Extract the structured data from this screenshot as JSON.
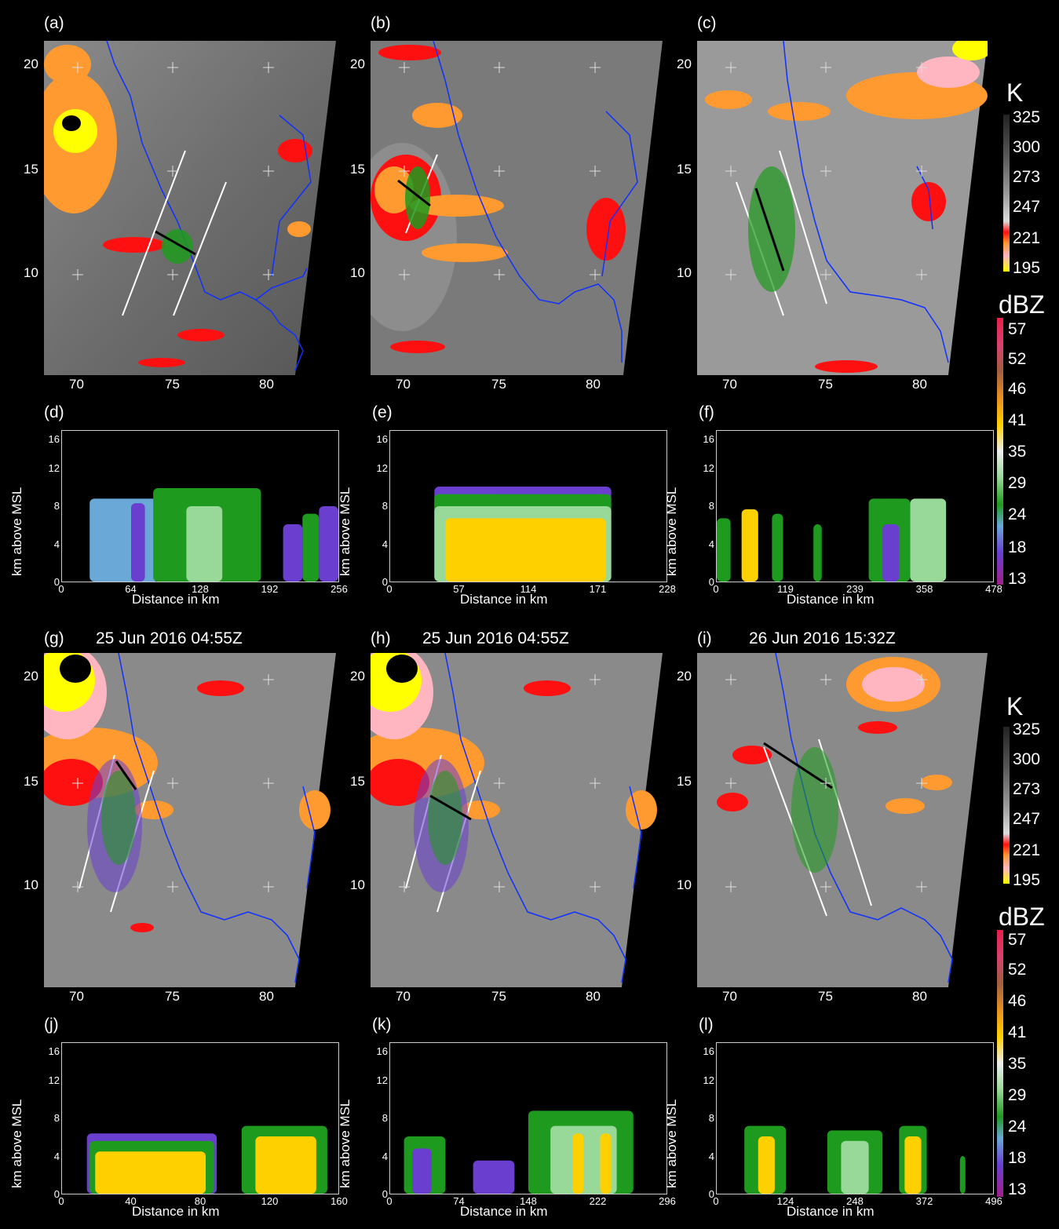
{
  "panels": {
    "a": {
      "label": "(a)",
      "title": "",
      "yticks": [
        "20",
        "15",
        "10"
      ],
      "xticks": [
        "70",
        "75",
        "80"
      ]
    },
    "b": {
      "label": "(b)",
      "title": "",
      "yticks": [
        "20",
        "15",
        "10"
      ],
      "xticks": [
        "70",
        "75",
        "80"
      ]
    },
    "c": {
      "label": "(c)",
      "title": "",
      "yticks": [
        "20",
        "15",
        "10"
      ],
      "xticks": [
        "70",
        "75",
        "80"
      ]
    },
    "g": {
      "label": "(g)",
      "title": "25 Jun 2016 04:55Z",
      "yticks": [
        "20",
        "15",
        "10"
      ],
      "xticks": [
        "70",
        "75",
        "80"
      ]
    },
    "h": {
      "label": "(h)",
      "title": "25 Jun 2016 04:55Z",
      "yticks": [
        "20",
        "15",
        "10"
      ],
      "xticks": [
        "70",
        "75",
        "80"
      ]
    },
    "i": {
      "label": "(i)",
      "title": "26 Jun 2016 15:32Z",
      "yticks": [
        "20",
        "15",
        "10"
      ],
      "xticks": [
        "70",
        "75",
        "80"
      ]
    }
  },
  "cross_sections": {
    "d": {
      "label": "(d)",
      "xticks": [
        "0",
        "64",
        "128",
        "192",
        "256"
      ],
      "yticks": [
        "16",
        "12",
        "8",
        "4",
        "0"
      ],
      "xlabel": "Distance in km",
      "ylabel": "km above MSL"
    },
    "e": {
      "label": "(e)",
      "xticks": [
        "0",
        "57",
        "114",
        "171",
        "228"
      ],
      "yticks": [
        "16",
        "12",
        "8",
        "4",
        "0"
      ],
      "xlabel": "Distance in km",
      "ylabel": "km above MSL"
    },
    "f": {
      "label": "(f)",
      "xticks": [
        "0",
        "119",
        "239",
        "358",
        "478"
      ],
      "yticks": [
        "16",
        "12",
        "8",
        "4",
        "0"
      ],
      "xlabel": "Distance in km",
      "ylabel": "km above MSL"
    },
    "j": {
      "label": "(j)",
      "xticks": [
        "0",
        "40",
        "80",
        "120",
        "160"
      ],
      "yticks": [
        "16",
        "12",
        "8",
        "4",
        "0"
      ],
      "xlabel": "Distance in km",
      "ylabel": "km above MSL"
    },
    "k": {
      "label": "(k)",
      "xticks": [
        "0",
        "74",
        "148",
        "222",
        "296"
      ],
      "yticks": [
        "16",
        "12",
        "8",
        "4",
        "0"
      ],
      "xlabel": "Distance in km",
      "ylabel": "km above MSL"
    },
    "l": {
      "label": "(l)",
      "xticks": [
        "0",
        "124",
        "248",
        "372",
        "496"
      ],
      "yticks": [
        "16",
        "12",
        "8",
        "4",
        "0"
      ],
      "xlabel": "Distance in km",
      "ylabel": "km above MSL"
    }
  },
  "colorbars": {
    "temperature": {
      "title": "K",
      "ticks": [
        "325",
        "300",
        "273",
        "247",
        "221",
        "195"
      ]
    },
    "reflectivity": {
      "title": "dBZ",
      "ticks": [
        "57",
        "52",
        "46",
        "41",
        "35",
        "29",
        "24",
        "18",
        "13"
      ]
    }
  },
  "colors": {
    "coast": "#1030ff",
    "cold_yellow": "#ffff00",
    "cold_pink": "#ffb6c1",
    "cold_orange": "#ff9a30",
    "cold_red": "#ff1010",
    "dbz_purple": "#6a3fd0",
    "dbz_blue": "#6aa8d8",
    "dbz_green": "#1e9a1e",
    "dbz_lightgreen": "#98d898",
    "dbz_yellow": "#ffd000"
  }
}
